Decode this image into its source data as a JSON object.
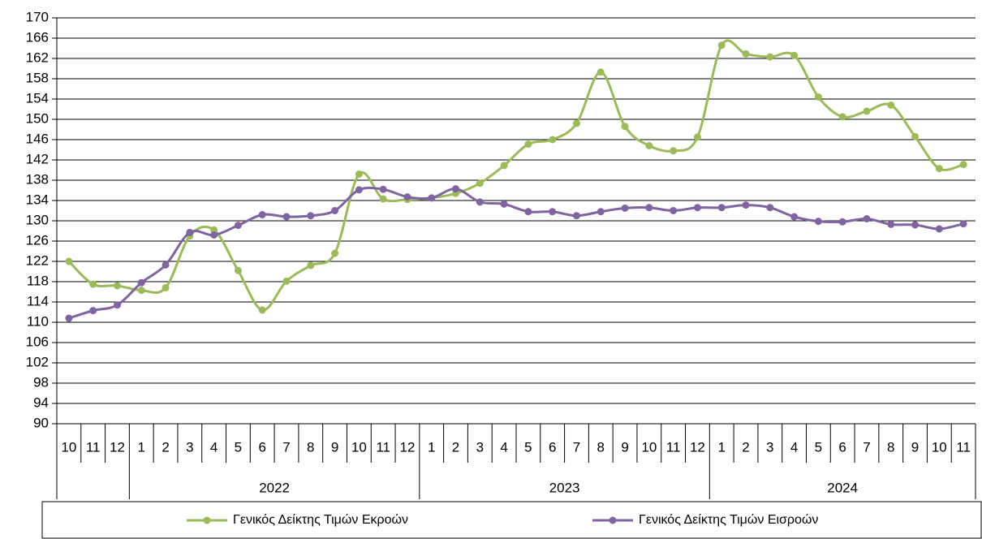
{
  "chart_data": {
    "type": "line",
    "smooth": true,
    "grid": true,
    "legend": "bottom",
    "categories": [
      "10",
      "11",
      "12",
      "1",
      "2",
      "3",
      "4",
      "5",
      "6",
      "7",
      "8",
      "9",
      "10",
      "11",
      "12",
      "1",
      "2",
      "3",
      "4",
      "5",
      "6",
      "7",
      "8",
      "9",
      "10",
      "11",
      "12",
      "1",
      "2",
      "3",
      "4",
      "5",
      "6",
      "7",
      "8",
      "9",
      "10",
      "11"
    ],
    "year_labels": [
      null,
      "2022",
      "2023",
      "2024"
    ],
    "ylim": [
      90,
      170
    ],
    "yticks": [
      90,
      94,
      98,
      102,
      106,
      110,
      114,
      118,
      122,
      126,
      130,
      134,
      138,
      142,
      146,
      150,
      154,
      158,
      162,
      166,
      170
    ],
    "series": [
      {
        "name": "Γενικός Δείκτης Τιμών Εκροών",
        "color": "#9bbb59",
        "values": [
          122,
          117.5,
          117.2,
          116.3,
          116.8,
          127,
          128.2,
          120.2,
          112.4,
          118.1,
          121.2,
          123.6,
          139.2,
          134.3,
          134.2,
          134.5,
          135.4,
          137.4,
          140.9,
          145.1,
          146,
          149.2,
          159.3,
          148.6,
          144.8,
          143.8,
          146.5,
          164.6,
          162.9,
          162.3,
          162.6,
          154.4,
          150.5,
          151.6,
          152.8,
          146.6,
          140.3,
          141.1
        ]
      },
      {
        "name": "Γενικός Δείκτης Τιμών Εισροών",
        "color": "#8064a2",
        "values": [
          110.8,
          112.3,
          113.4,
          117.8,
          121.3,
          127.7,
          127.2,
          129.1,
          131.2,
          130.8,
          131,
          132,
          136.1,
          136.2,
          134.7,
          134.5,
          136.3,
          133.7,
          133.3,
          131.8,
          131.8,
          131,
          131.8,
          132.5,
          132.6,
          132,
          132.6,
          132.6,
          133.1,
          132.6,
          130.8,
          129.9,
          129.8,
          130.4,
          129.3,
          129.2,
          128.4,
          129.4
        ]
      }
    ]
  }
}
